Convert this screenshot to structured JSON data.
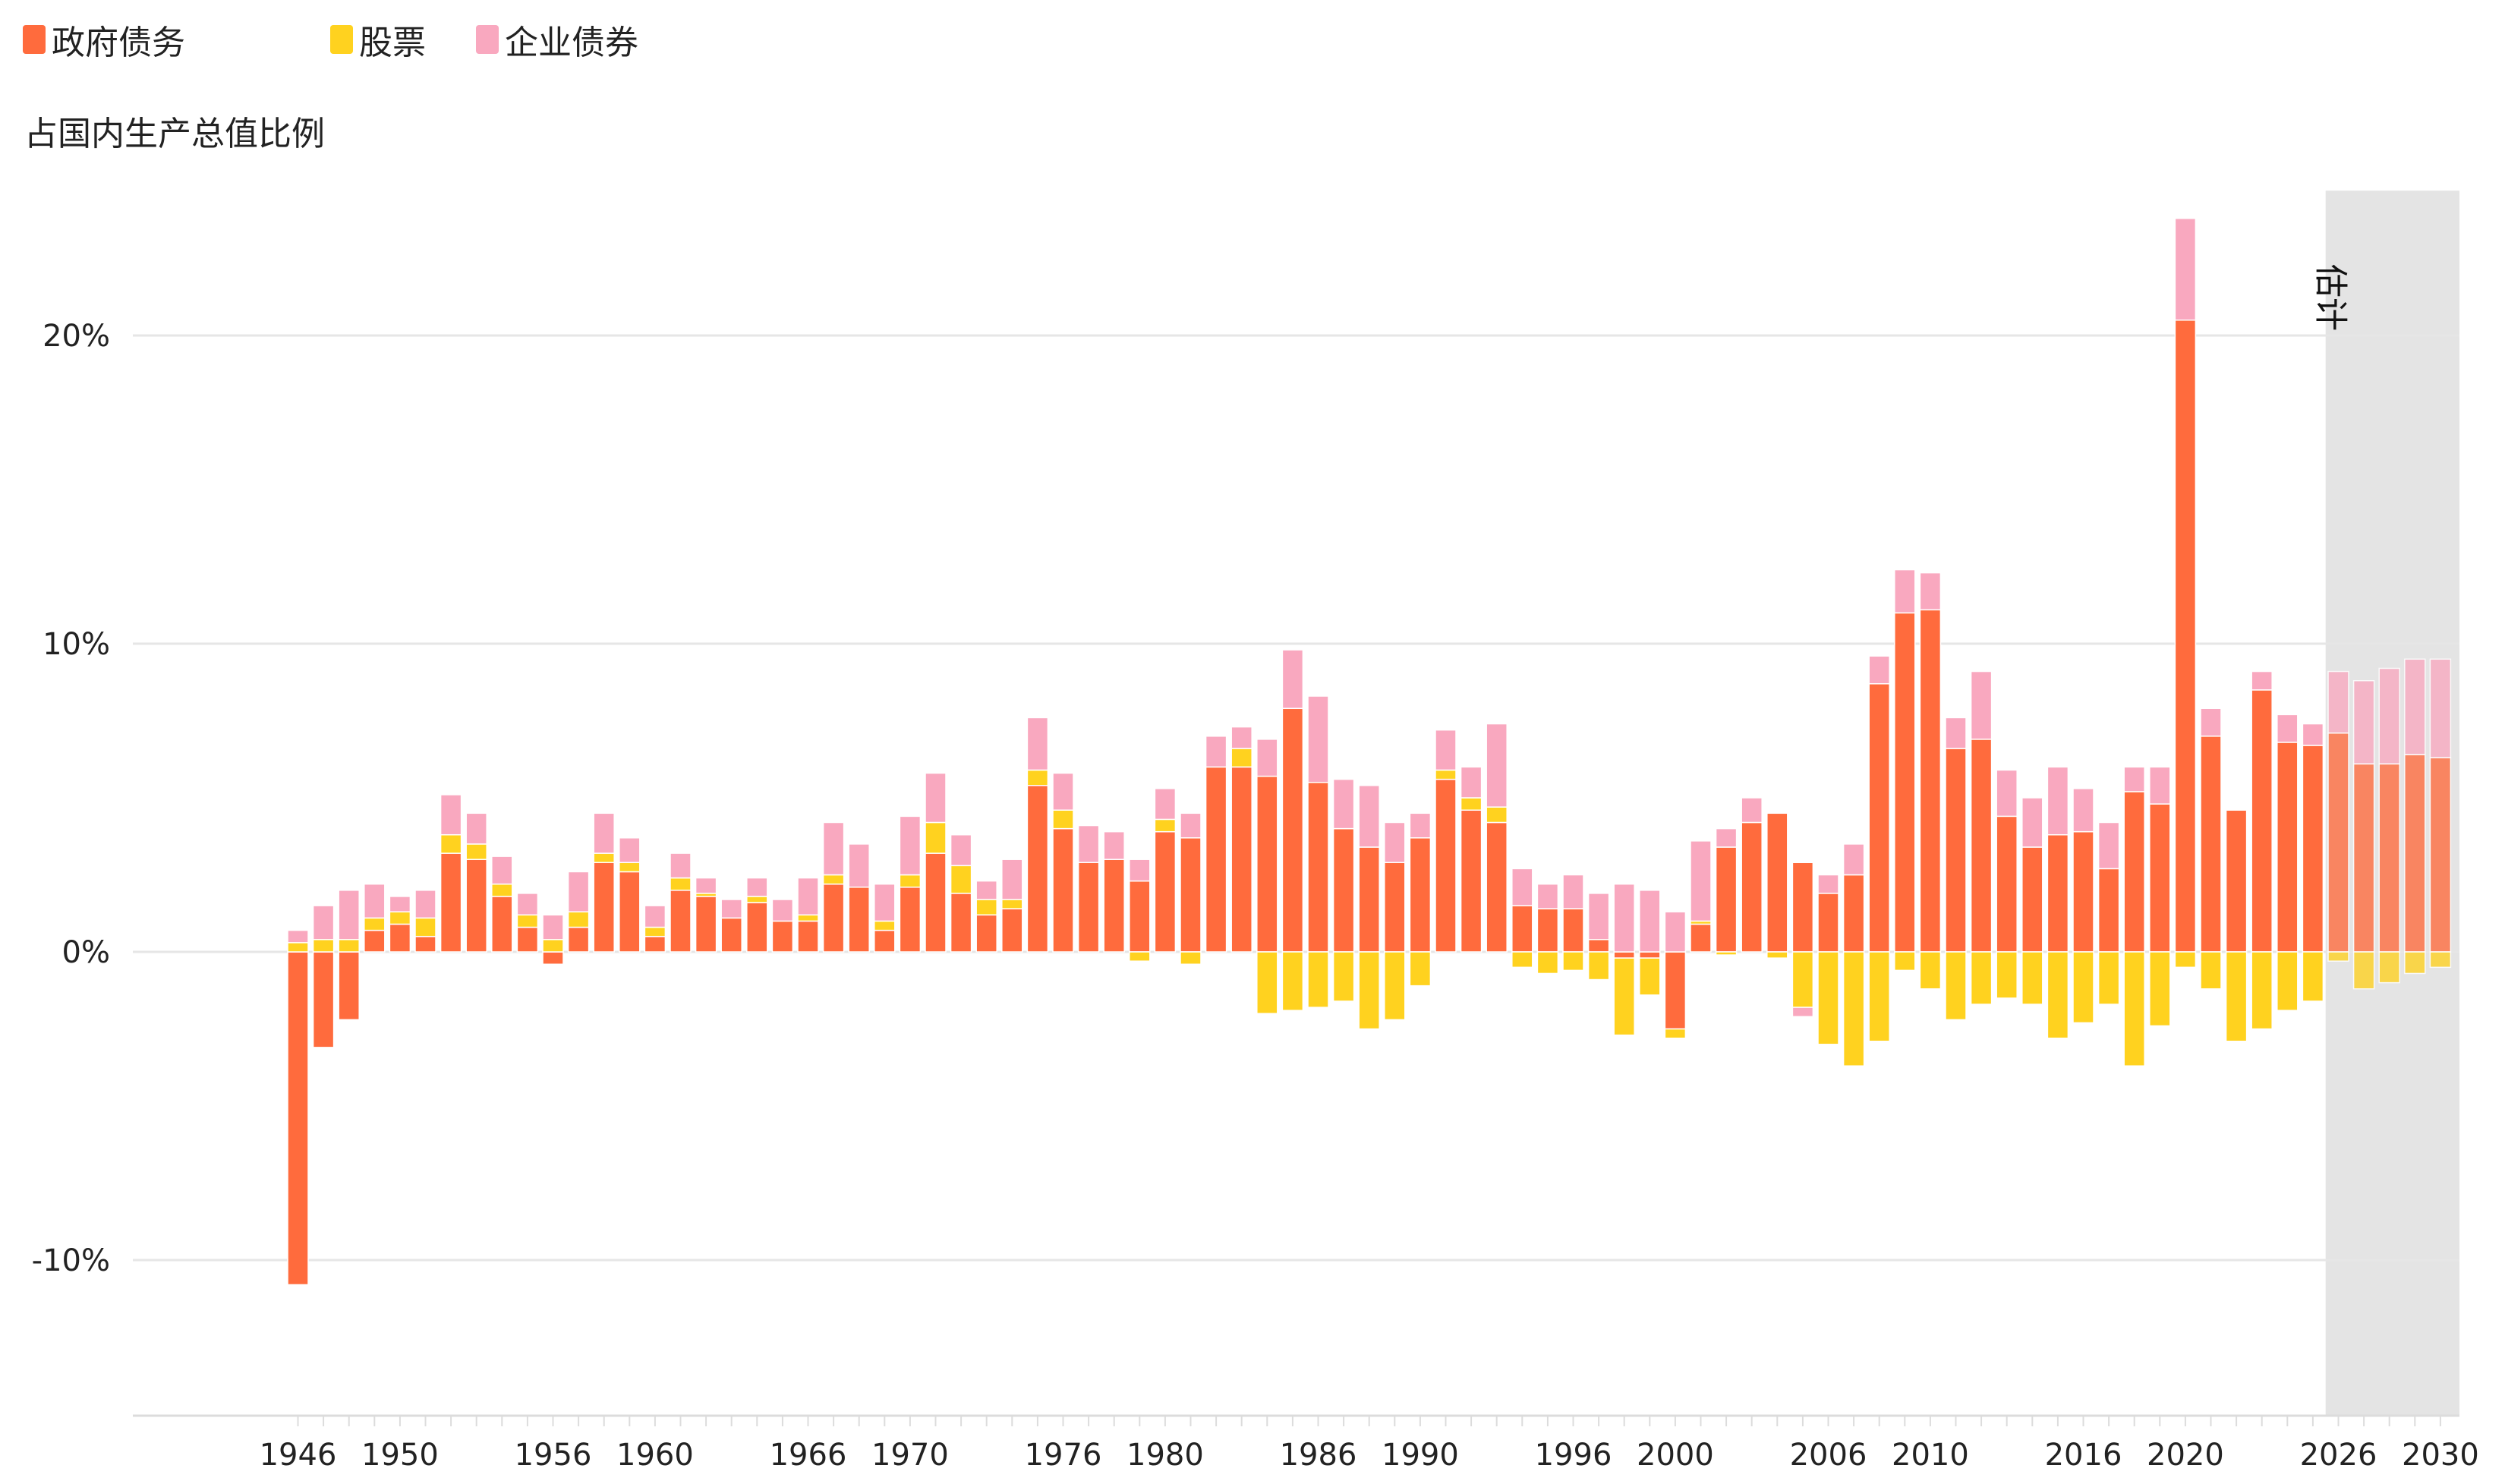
{
  "chart_data": {
    "type": "bar",
    "stacked": true,
    "ylabel": "占国内生产总值比例",
    "ylim": [
      -15,
      25
    ],
    "yticks": [
      -10,
      0,
      10,
      20
    ],
    "ytick_labels": [
      "-10%",
      "0%",
      "10%",
      "20%"
    ],
    "xticks": [
      1946,
      1950,
      1956,
      1960,
      1966,
      1970,
      1976,
      1980,
      1986,
      1990,
      1996,
      2000,
      2006,
      2010,
      2016,
      2020,
      2026,
      2030
    ],
    "xlim": [
      1946,
      2030
    ],
    "grid": "horizontal",
    "legend_position": "top-left",
    "estimate_label": "估计",
    "estimate_start_year": 2026,
    "colors": {
      "政府债务": "#ff6b3d",
      "股票": "#ffd21f",
      "企业债券": "#f9a8bf",
      "estimate_shade": "#e4e4e4",
      "grid": "#e6e6e6"
    },
    "series": [
      {
        "name": "政府债务",
        "values": [
          -10.8,
          -3.1,
          -2.2,
          0.7,
          0.9,
          0.5,
          3.2,
          3.0,
          1.8,
          0.8,
          -0.4,
          0.8,
          2.9,
          2.6,
          0.5,
          2.0,
          1.8,
          1.1,
          1.6,
          1.0,
          1.0,
          2.2,
          2.1,
          0.7,
          2.1,
          3.2,
          1.9,
          1.2,
          1.4,
          5.4,
          4.0,
          2.9,
          3.0,
          2.3,
          3.9,
          3.7,
          6.0,
          6.0,
          5.7,
          7.9,
          5.5,
          4.0,
          3.4,
          2.9,
          3.7,
          5.6,
          4.6,
          4.2,
          1.5,
          1.4,
          1.4,
          0.4,
          -0.2,
          -0.2,
          -2.5,
          0.9,
          3.4,
          4.2,
          4.5,
          2.9,
          1.9,
          2.5,
          8.7,
          11.0,
          11.1,
          6.6,
          6.9,
          4.4,
          3.4,
          3.8,
          3.9,
          2.7,
          5.2,
          4.8,
          20.5,
          7.0,
          4.6,
          8.5,
          6.8,
          6.7,
          7.1,
          6.1,
          6.1,
          6.4,
          6.3
        ]
      },
      {
        "name": "股票",
        "values": [
          0.3,
          0.4,
          0.4,
          0.4,
          0.4,
          0.6,
          0.6,
          0.5,
          0.4,
          0.4,
          0.4,
          0.5,
          0.3,
          0.3,
          0.3,
          0.4,
          0.1,
          0.0,
          0.2,
          0.0,
          0.2,
          0.3,
          0.0,
          0.3,
          0.4,
          1.0,
          0.9,
          0.5,
          0.3,
          0.5,
          0.6,
          0.0,
          0.0,
          -0.3,
          0.4,
          -0.4,
          0.0,
          0.6,
          -2.0,
          -1.9,
          -1.8,
          -1.6,
          -2.5,
          -2.2,
          -1.1,
          0.3,
          0.4,
          0.5,
          -0.5,
          -0.7,
          -0.6,
          -0.9,
          -2.5,
          -1.2,
          -0.3,
          0.1,
          -0.1,
          0.0,
          -0.2,
          -1.8,
          -3.0,
          -3.7,
          -2.9,
          -0.6,
          -1.2,
          -2.2,
          -1.7,
          -1.5,
          -1.7,
          -2.8,
          -2.3,
          -1.7,
          -3.7,
          -2.4,
          -0.5,
          -1.2,
          -2.9,
          -2.5,
          -1.9,
          -1.6,
          -0.3,
          -1.2,
          -1.0,
          -0.7,
          -0.5
        ]
      },
      {
        "name": "企业债券",
        "values": [
          0.4,
          1.1,
          1.6,
          1.1,
          0.5,
          0.9,
          1.3,
          1.0,
          0.9,
          0.7,
          0.8,
          1.3,
          1.3,
          0.8,
          0.7,
          0.8,
          0.5,
          0.6,
          0.6,
          0.7,
          1.2,
          1.7,
          1.4,
          1.2,
          1.9,
          1.6,
          1.0,
          0.6,
          1.3,
          1.7,
          1.2,
          1.2,
          0.9,
          0.7,
          1.0,
          0.8,
          1.0,
          0.7,
          1.2,
          1.9,
          2.8,
          1.6,
          2.0,
          1.3,
          0.8,
          1.3,
          1.0,
          2.7,
          1.2,
          0.8,
          1.1,
          1.5,
          2.2,
          2.0,
          1.3,
          2.6,
          0.6,
          0.8,
          0.0,
          -0.3,
          0.6,
          1.0,
          0.9,
          1.4,
          1.2,
          1.0,
          2.2,
          1.5,
          1.6,
          2.2,
          1.4,
          1.5,
          0.8,
          1.2,
          3.3,
          0.9,
          0.0,
          0.6,
          0.9,
          0.7,
          2.0,
          2.7,
          3.1,
          3.1,
          3.2
        ]
      }
    ],
    "years": [
      1946,
      1947,
      1948,
      1949,
      1950,
      1951,
      1952,
      1953,
      1954,
      1955,
      1956,
      1957,
      1958,
      1959,
      1960,
      1961,
      1962,
      1963,
      1964,
      1965,
      1966,
      1967,
      1968,
      1969,
      1970,
      1971,
      1972,
      1973,
      1974,
      1975,
      1976,
      1977,
      1978,
      1979,
      1980,
      1981,
      1982,
      1983,
      1984,
      1985,
      1986,
      1987,
      1988,
      1989,
      1990,
      1991,
      1992,
      1993,
      1994,
      1995,
      1996,
      1997,
      1998,
      1999,
      2000,
      2001,
      2002,
      2003,
      2004,
      2005,
      2006,
      2007,
      2008,
      2009,
      2010,
      2011,
      2012,
      2013,
      2014,
      2015,
      2016,
      2017,
      2018,
      2019,
      2020,
      2021,
      2022,
      2023,
      2024,
      2025,
      2026,
      2027,
      2028,
      2029,
      2030
    ]
  }
}
